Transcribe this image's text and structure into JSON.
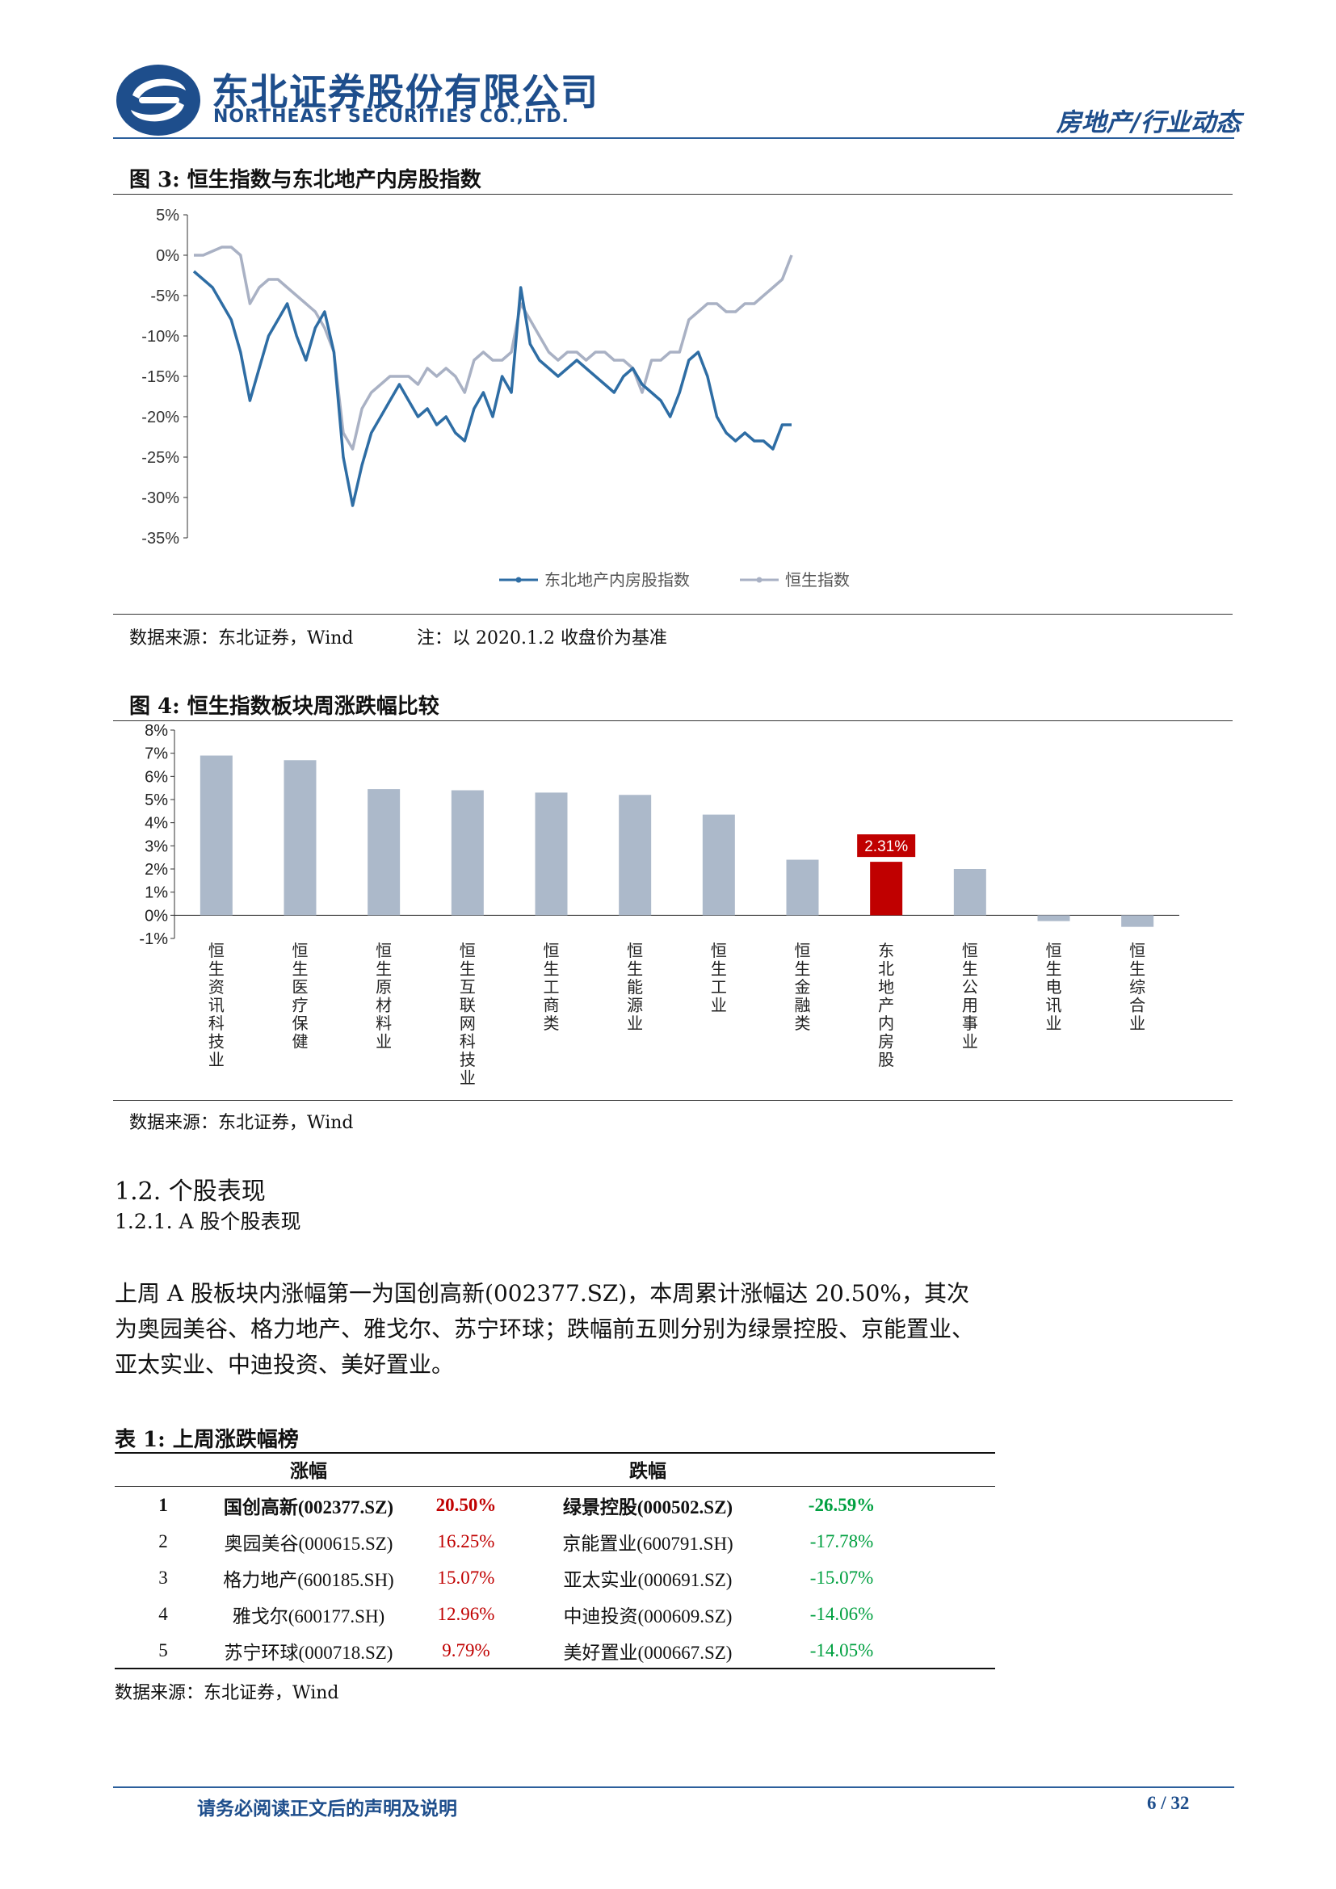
{
  "header": {
    "company_cn": "东北证券股份有限公司",
    "company_en": "NORTHEAST SECURITIES CO.,LTD.",
    "category": "房地产/行业动态",
    "logo_color": "#1e4e8c"
  },
  "figure3": {
    "title": "图 3:  恒生指数与东北地产内房股指数",
    "source": "数据来源：东北证券，Wind",
    "note": "注：以 2020.1.2 收盘价为基准",
    "chart_data": {
      "type": "line",
      "y_unit": "%",
      "ylim": [
        -35,
        5
      ],
      "y_ticks": [
        "5%",
        "0%",
        "-5%",
        "-10%",
        "-15%",
        "-20%",
        "-25%",
        "-30%",
        "-35%"
      ],
      "grid": false,
      "legend_position": "bottom",
      "series": [
        {
          "name": "东北地产内房股指数",
          "color": "#2e6da4",
          "values": [
            -2,
            -3,
            -4,
            -6,
            -8,
            -12,
            -18,
            -14,
            -10,
            -8,
            -6,
            -10,
            -13,
            -9,
            -7,
            -12,
            -25,
            -31,
            -26,
            -22,
            -20,
            -18,
            -16,
            -18,
            -20,
            -19,
            -21,
            -20,
            -22,
            -23,
            -19,
            -17,
            -20,
            -15,
            -17,
            -4,
            -11,
            -13,
            -14,
            -15,
            -14,
            -13,
            -14,
            -15,
            -16,
            -17,
            -15,
            -14,
            -16,
            -17,
            -18,
            -20,
            -17,
            -13,
            -12,
            -15,
            -20,
            -22,
            -23,
            -22,
            -23,
            -23,
            -24,
            -21,
            -21
          ]
        },
        {
          "name": "恒生指数",
          "color": "#a9b1c4",
          "values": [
            0,
            0,
            0.5,
            1,
            1,
            0,
            -6,
            -4,
            -3,
            -3,
            -4,
            -5,
            -6,
            -7,
            -9,
            -12,
            -22,
            -24,
            -19,
            -17,
            -16,
            -15,
            -15,
            -15,
            -16,
            -14,
            -15,
            -14,
            -15,
            -17,
            -13,
            -12,
            -13,
            -13,
            -12,
            -6,
            -8,
            -10,
            -12,
            -13,
            -12,
            -12,
            -13,
            -12,
            -12,
            -13,
            -13,
            -14,
            -17,
            -13,
            -13,
            -12,
            -12,
            -8,
            -7,
            -6,
            -6,
            -7,
            -7,
            -6,
            -6,
            -5,
            -4,
            -3,
            0
          ]
        }
      ]
    }
  },
  "figure4": {
    "title": "图 4:  恒生指数板块周涨跌幅比较",
    "source": "数据来源：东北证券，Wind",
    "chart_data": {
      "type": "bar",
      "y_unit": "%",
      "ylim": [
        -1,
        8
      ],
      "y_ticks": [
        "8%",
        "7%",
        "6%",
        "5%",
        "4%",
        "3%",
        "2%",
        "1%",
        "0%",
        "-1%"
      ],
      "categories": [
        "恒生资讯科技业",
        "恒生医疗保健",
        "恒生原材料业",
        "恒生互联网科技业",
        "恒生工商类",
        "恒生能源业",
        "恒生工业",
        "恒生金融类",
        "东北地产内房股",
        "恒生公用事业",
        "恒生电讯业",
        "恒生综合业"
      ],
      "values": [
        6.9,
        6.7,
        5.45,
        5.4,
        5.3,
        5.2,
        4.35,
        2.4,
        2.31,
        2.0,
        -0.25,
        -0.5
      ],
      "highlight_index": 8,
      "highlight_label": "2.31%",
      "bar_color": "#acb9ca",
      "highlight_color": "#c00000"
    }
  },
  "section": {
    "h2": "1.2.   个股表现",
    "h3": "1.2.1.    A 股个股表现",
    "paragraph": "上周 A 股板块内涨幅第一为国创高新(002377.SZ)，本周累计涨幅达 20.50%，其次为奥园美谷、格力地产、雅戈尔、苏宁环球；跌幅前五则分别为绿景控股、京能置业、亚太实业、中迪投资、美好置业。"
  },
  "table1": {
    "title": "表 1:  上周涨跌幅榜",
    "head_up": "涨幅",
    "head_down": "跌幅",
    "rows": [
      {
        "rank": "1",
        "up_name": "国创高新(002377.SZ)",
        "up_pct": "20.50%",
        "down_name": "绿景控股(000502.SZ)",
        "down_pct": "-26.59%"
      },
      {
        "rank": "2",
        "up_name": "奥园美谷(000615.SZ)",
        "up_pct": "16.25%",
        "down_name": "京能置业(600791.SH)",
        "down_pct": "-17.78%"
      },
      {
        "rank": "3",
        "up_name": "格力地产(600185.SH)",
        "up_pct": "15.07%",
        "down_name": "亚太实业(000691.SZ)",
        "down_pct": "-15.07%"
      },
      {
        "rank": "4",
        "up_name": "雅戈尔(600177.SH)",
        "up_pct": "12.96%",
        "down_name": "中迪投资(000609.SZ)",
        "down_pct": "-14.06%"
      },
      {
        "rank": "5",
        "up_name": "苏宁环球(000718.SZ)",
        "up_pct": "9.79%",
        "down_name": "美好置业(000667.SZ)",
        "down_pct": "-14.05%"
      }
    ],
    "source": "数据来源：东北证券，Wind"
  },
  "footer": {
    "disclaimer": "请务必阅读正文后的声明及说明",
    "page": "6 / 32"
  }
}
